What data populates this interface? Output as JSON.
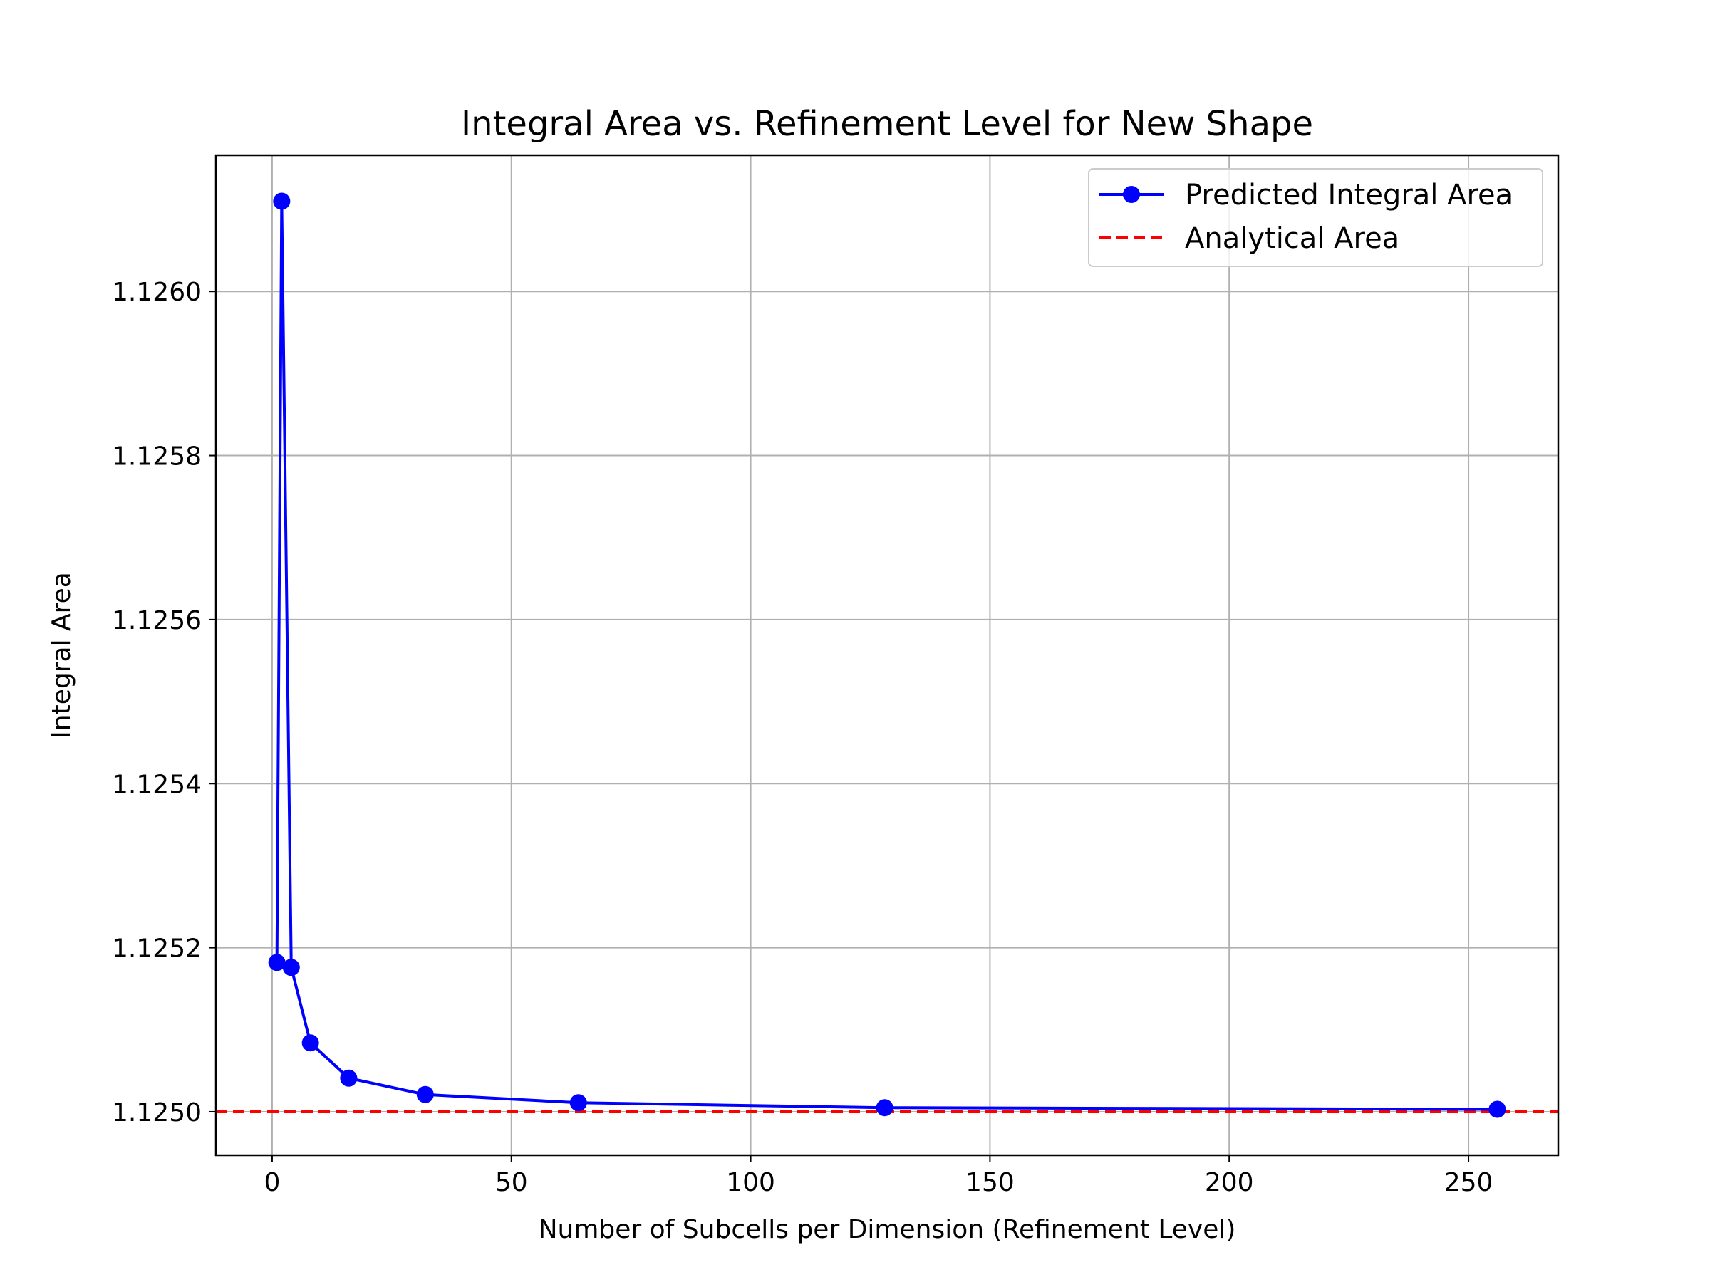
{
  "chart_data": {
    "type": "line",
    "title": "Integral Area vs. Refinement Level for New Shape",
    "xlabel": "Number of Subcells per Dimension (Refinement Level)",
    "ylabel": "Integral Area",
    "xlim": [
      -11.75,
      268.75
    ],
    "ylim": [
      1.124947,
      1.126166
    ],
    "xticks": [
      0,
      50,
      100,
      150,
      200,
      250
    ],
    "xtick_labels": [
      "0",
      "50",
      "100",
      "150",
      "200",
      "250"
    ],
    "yticks": [
      1.125,
      1.1252,
      1.1254,
      1.1256,
      1.1258,
      1.126
    ],
    "ytick_labels": [
      "1.1250",
      "1.1252",
      "1.1254",
      "1.1256",
      "1.1258",
      "1.1260"
    ],
    "grid": true,
    "legend_position": "top-right",
    "series": [
      {
        "name": "Predicted Integral Area",
        "color": "#0000ff",
        "style": "solid-with-circle-markers",
        "x": [
          1,
          2,
          4,
          8,
          16,
          32,
          64,
          128,
          256
        ],
        "y": [
          1.125182,
          1.12611,
          1.125176,
          1.125084,
          1.125041,
          1.125021,
          1.125011,
          1.125005,
          1.125003
        ]
      },
      {
        "name": "Analytical Area",
        "color": "#ff0000",
        "style": "dashed-horizontal",
        "y": 1.125
      }
    ]
  }
}
